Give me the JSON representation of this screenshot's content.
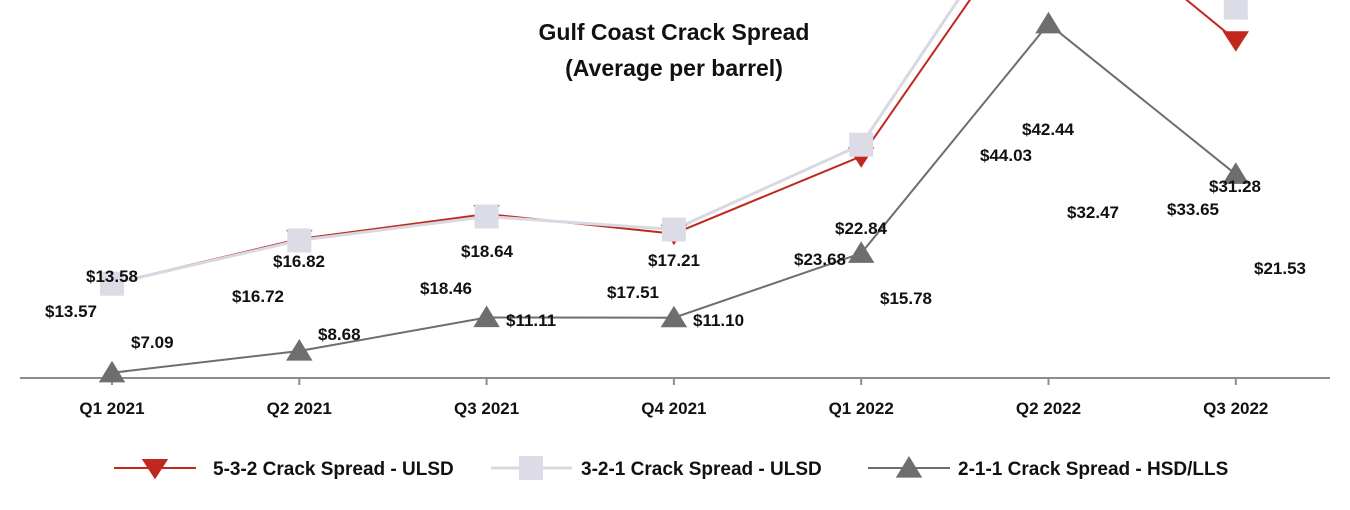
{
  "chart_data": {
    "type": "line",
    "title_line1": "Gulf Coast Crack Spread",
    "title_line2": "(Average per barrel)",
    "categories": [
      "Q1 2021",
      "Q2 2021",
      "Q3 2021",
      "Q4 2021",
      "Q1 2022",
      "Q2 2022",
      "Q3 2022"
    ],
    "ylim": [
      0,
      50
    ],
    "grid": false,
    "legend_position": "bottom",
    "series": [
      {
        "name": "5-3-2 Crack Spread - ULSD",
        "color": "#c0281e",
        "marker": "triangle-down",
        "values": [
          13.58,
          16.82,
          18.64,
          17.21,
          22.84,
          42.44,
          31.28
        ],
        "labels": [
          "$13.58",
          "$16.82",
          "$18.64",
          "$17.21",
          "$22.84",
          "$42.44",
          "$31.28"
        ]
      },
      {
        "name": "3-2-1 Crack Spread - ULSD",
        "color": "#dcdce6",
        "marker": "square",
        "values": [
          13.57,
          16.72,
          18.46,
          17.51,
          23.68,
          44.03,
          33.65
        ],
        "labels": [
          "$13.57",
          "$16.72",
          "$18.46",
          "$17.51",
          "$23.68",
          "$44.03",
          "$33.65"
        ]
      },
      {
        "name": "2-1-1 Crack Spread - HSD/LLS",
        "color": "#6e6e6e",
        "marker": "triangle-up",
        "values": [
          7.09,
          8.68,
          11.11,
          11.1,
          15.78,
          32.47,
          21.53
        ],
        "labels": [
          "$7.09",
          "$8.68",
          "$11.11",
          "$11.10",
          "$15.78",
          "$32.47",
          "$21.53"
        ]
      }
    ]
  }
}
